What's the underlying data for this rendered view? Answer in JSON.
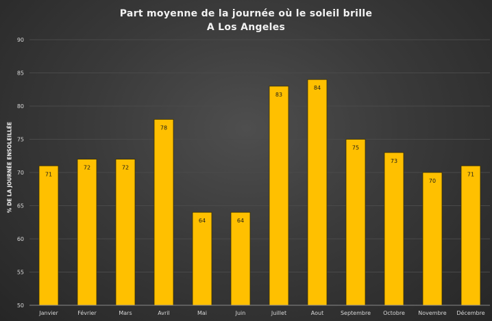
{
  "chart_data": {
    "type": "bar",
    "title": [
      "Part moyenne de la journée où le soleil brille",
      "A Los Angeles"
    ],
    "xlabel": "",
    "ylabel": "% DE LA JOURNÉE ENSOLEILLÉE",
    "categories": [
      "Janvier",
      "Février",
      "Mars",
      "Avril",
      "Mai",
      "Juin",
      "Juillet",
      "Aout",
      "Septembre",
      "Octobre",
      "Novembre",
      "Décembre"
    ],
    "values": [
      71,
      72,
      72,
      78,
      64,
      64,
      83,
      84,
      75,
      73,
      70,
      71
    ],
    "ylim": [
      50,
      90
    ],
    "yticks": [
      50,
      55,
      60,
      65,
      70,
      75,
      80,
      85,
      90
    ],
    "grid": true,
    "legend": "none",
    "colors": {
      "bar": "#FFC000",
      "bar_border": "#3a3000",
      "grid": "#4a4a4a",
      "text": "#d9d9d9",
      "label": "#1a1a1a"
    }
  }
}
